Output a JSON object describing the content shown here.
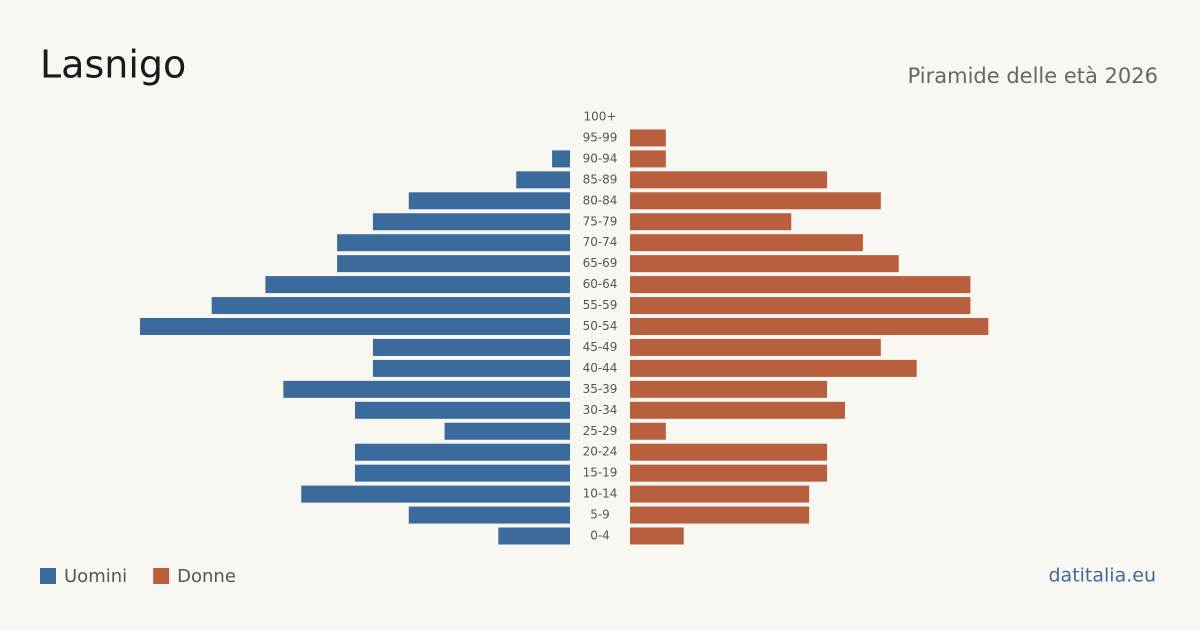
{
  "chart_data": {
    "type": "pyramid",
    "title": "Lasnigo",
    "subtitle": "Piramide delle età 2026",
    "source": "datitalia.eu",
    "categories": [
      "0-4",
      "5-9",
      "10-14",
      "15-19",
      "20-24",
      "25-29",
      "30-34",
      "35-39",
      "40-44",
      "45-49",
      "50-54",
      "55-59",
      "60-64",
      "65-69",
      "70-74",
      "75-79",
      "80-84",
      "85-89",
      "90-94",
      "95-99",
      "100+"
    ],
    "series": [
      {
        "name": "Uomini",
        "color": "#3b6a9c",
        "values": [
          4,
          9,
          15,
          12,
          12,
          7,
          12,
          16,
          11,
          11,
          24,
          20,
          17,
          13,
          13,
          11,
          9,
          3,
          1,
          0,
          0
        ]
      },
      {
        "name": "Donne",
        "color": "#b85f3e",
        "values": [
          3,
          10,
          10,
          11,
          11,
          2,
          12,
          11,
          16,
          14,
          20,
          19,
          19,
          15,
          13,
          9,
          14,
          11,
          2,
          2,
          0
        ]
      }
    ]
  }
}
